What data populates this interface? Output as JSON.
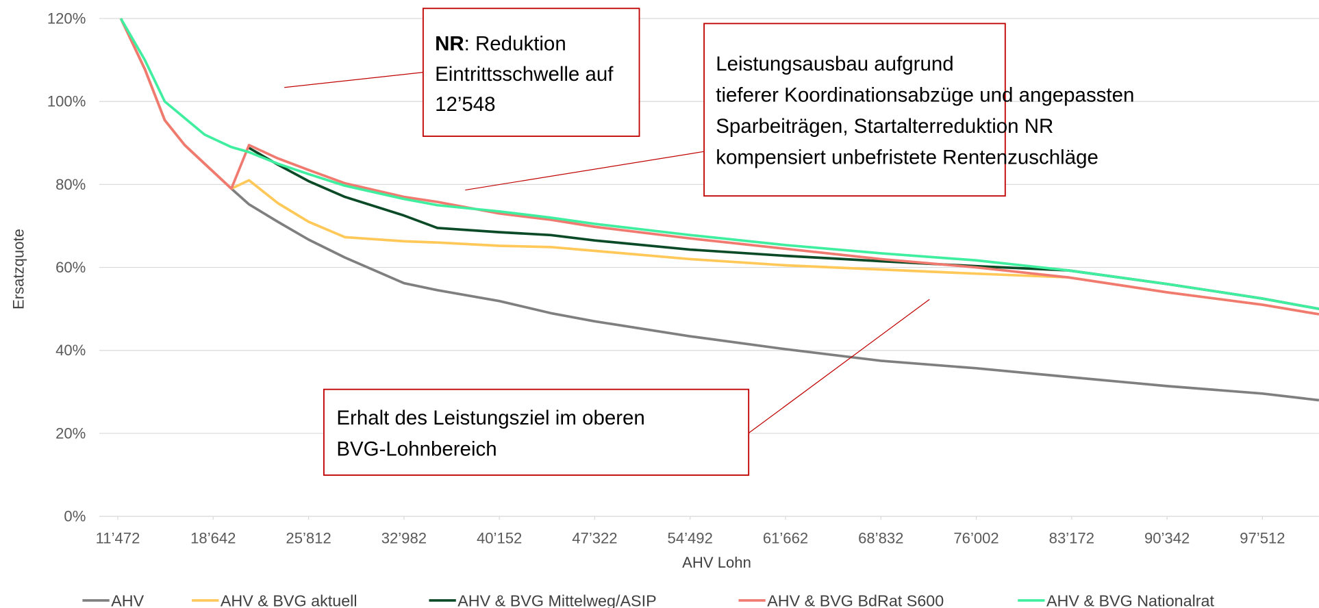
{
  "chart_data": {
    "type": "line",
    "xlabel": "AHV Lohn",
    "ylabel": "Ersatzquote",
    "x": [
      11700,
      13500,
      15000,
      16500,
      18000,
      20008,
      21335,
      23500,
      25812,
      28540,
      32982,
      35500,
      40152,
      44000,
      47322,
      54492,
      61662,
      68832,
      76002,
      82900,
      90342,
      97512,
      101760
    ],
    "series": [
      {
        "name": "AHV",
        "color": "#7f7f7f",
        "values": [
          120,
          107.8,
          95.5,
          89.5,
          85,
          79,
          75.2,
          71,
          66.7,
          62.4,
          56.2,
          54.5,
          51.9,
          49,
          47,
          43.4,
          40.3,
          37.5,
          35.7,
          33.6,
          31.4,
          29.6,
          28
        ]
      },
      {
        "name": "AHV & BVG aktuell",
        "color": "#ffc858",
        "values": [
          120,
          107.8,
          95.5,
          89.5,
          85,
          79,
          81,
          75.5,
          71,
          67.3,
          66.3,
          66,
          65.2,
          64.9,
          64,
          62,
          60.5,
          59.5,
          58.5,
          57.6,
          54,
          51,
          48.7
        ]
      },
      {
        "name": "AHV & BVG Mittelweg/ASIP",
        "color": "#0b4a26",
        "values": [
          null,
          null,
          null,
          null,
          null,
          null,
          88.8,
          84.8,
          80.8,
          77,
          72.5,
          69.5,
          68.5,
          67.8,
          66.5,
          64.3,
          62.8,
          61.5,
          60.3,
          59.3,
          56,
          52.5,
          50
        ]
      },
      {
        "name": "AHV & BVG BdRat S600",
        "color": "#f07a70",
        "values": [
          120,
          107.8,
          95.5,
          89.5,
          85,
          79,
          89.5,
          86.3,
          83.5,
          80.3,
          77,
          75.8,
          73,
          71.5,
          69.8,
          67,
          64.5,
          62,
          60,
          57.6,
          54,
          51,
          48.7
        ]
      },
      {
        "name": "AHV & BVG Nationalrat",
        "color": "#40eea0",
        "values": [
          120,
          110,
          100,
          96,
          92,
          89,
          87.8,
          85,
          82.5,
          79.7,
          76.5,
          75,
          73.5,
          72,
          70.5,
          67.8,
          65.4,
          63.4,
          61.7,
          59.3,
          56,
          52.5,
          50
        ]
      }
    ],
    "xlim": [
      11472,
      101760
    ],
    "xticks": [
      {
        "value": 11472,
        "label": "11’472"
      },
      {
        "value": 18642,
        "label": "18’642"
      },
      {
        "value": 25812,
        "label": "25’812"
      },
      {
        "value": 32982,
        "label": "32’982"
      },
      {
        "value": 40152,
        "label": "40’152"
      },
      {
        "value": 47322,
        "label": "47’322"
      },
      {
        "value": 54492,
        "label": "54’492"
      },
      {
        "value": 61662,
        "label": "61’662"
      },
      {
        "value": 68832,
        "label": "68’832"
      },
      {
        "value": 76002,
        "label": "76’002"
      },
      {
        "value": 83172,
        "label": "83’172"
      },
      {
        "value": 90342,
        "label": "90’342"
      },
      {
        "value": 97512,
        "label": "97’512"
      }
    ],
    "ylim": [
      0,
      120
    ],
    "yticks": [
      {
        "value": 0,
        "label": "0%"
      },
      {
        "value": 20,
        "label": "20%"
      },
      {
        "value": 40,
        "label": "40%"
      },
      {
        "value": 60,
        "label": "60%"
      },
      {
        "value": 80,
        "label": "80%"
      },
      {
        "value": 100,
        "label": "100%"
      },
      {
        "value": 120,
        "label": "120%"
      }
    ],
    "grid": true,
    "legend": "bottom",
    "annotations": [
      {
        "lead": "NR",
        "lines": [
          ": Reduktion",
          "Eintrittsschwelle auf",
          "12’548"
        ]
      },
      {
        "lines": [
          "Leistungsausbau aufgrund",
          "tieferer Koordinationsabzüge und angepassten",
          "Sparbeiträgen, Startalterreduktion NR",
          "kompensiert unbefristete Rentenzuschläge"
        ]
      },
      {
        "lines": [
          "Erhalt des Leistungsziel im oberen",
          "BVG-Lohnbereich"
        ]
      }
    ]
  }
}
